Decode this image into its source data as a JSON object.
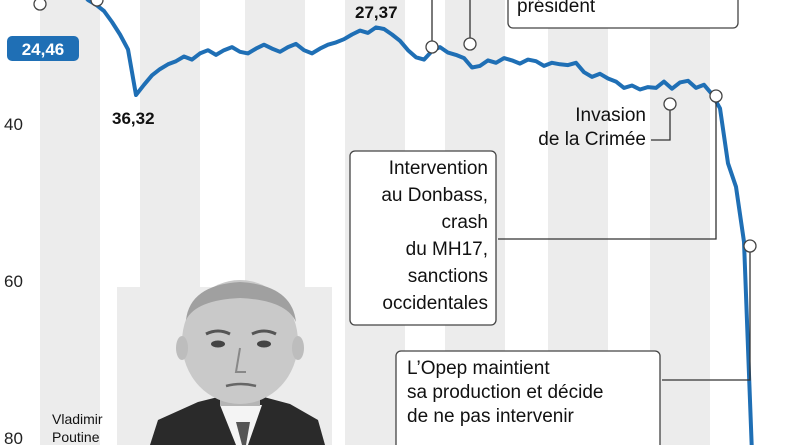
{
  "chart_data": {
    "type": "line",
    "y_inverted": true,
    "ylim": [
      18,
      82
    ],
    "yticks": [
      {
        "value": 40,
        "label": "40"
      },
      {
        "value": 60,
        "label": "60"
      },
      {
        "value": 80,
        "label": "80"
      }
    ],
    "series": [
      {
        "color": "#1f6fb5",
        "values": [
          24.46,
          22.0,
          21.8,
          22.4,
          21.5,
          23.0,
          24.2,
          24.8,
          25.6,
          27.0,
          28.6,
          30.5,
          36.3,
          35.0,
          33.8,
          33.0,
          32.4,
          32.0,
          31.4,
          31.8,
          31.0,
          30.6,
          31.2,
          30.6,
          30.2,
          30.8,
          31.0,
          30.4,
          29.9,
          30.4,
          30.8,
          30.2,
          29.8,
          30.6,
          31.0,
          30.4,
          29.9,
          29.6,
          29.2,
          28.6,
          28.1,
          28.4,
          27.7,
          27.9,
          28.6,
          29.4,
          30.6,
          31.5,
          31.8,
          30.7,
          30.2,
          30.9,
          31.2,
          31.6,
          32.8,
          32.6,
          31.9,
          32.2,
          31.6,
          31.9,
          32.3,
          31.8,
          32.0,
          32.6,
          32.2,
          32.4,
          32.5,
          32.2,
          33.4,
          34.0,
          33.6,
          34.2,
          34.6,
          35.4,
          35.1,
          35.6,
          35.3,
          35.4,
          34.6,
          35.5,
          34.7,
          34.5,
          35.4,
          35.0,
          36.2,
          38.0,
          45.0,
          48.0,
          55.0,
          82.0
        ]
      }
    ],
    "data_labels": [
      {
        "text": "24,46"
      },
      {
        "text": "36,32"
      },
      {
        "text": "27,37"
      }
    ],
    "annotations": [
      {
        "lines": [
          "président"
        ]
      },
      {
        "lines": [
          "Invasion",
          "de la Crimée"
        ]
      },
      {
        "lines": [
          "Intervention",
          "au Donbass,",
          "crash",
          "du MH17,",
          "sanctions",
          "occidentales"
        ]
      },
      {
        "lines": [
          "L’Opep maintient",
          "sa production et décide",
          "de ne pas intervenir"
        ]
      }
    ],
    "grid": "vertical-bands"
  },
  "photo": {
    "caption_lines": [
      "Vladimir",
      "Poutine"
    ]
  }
}
